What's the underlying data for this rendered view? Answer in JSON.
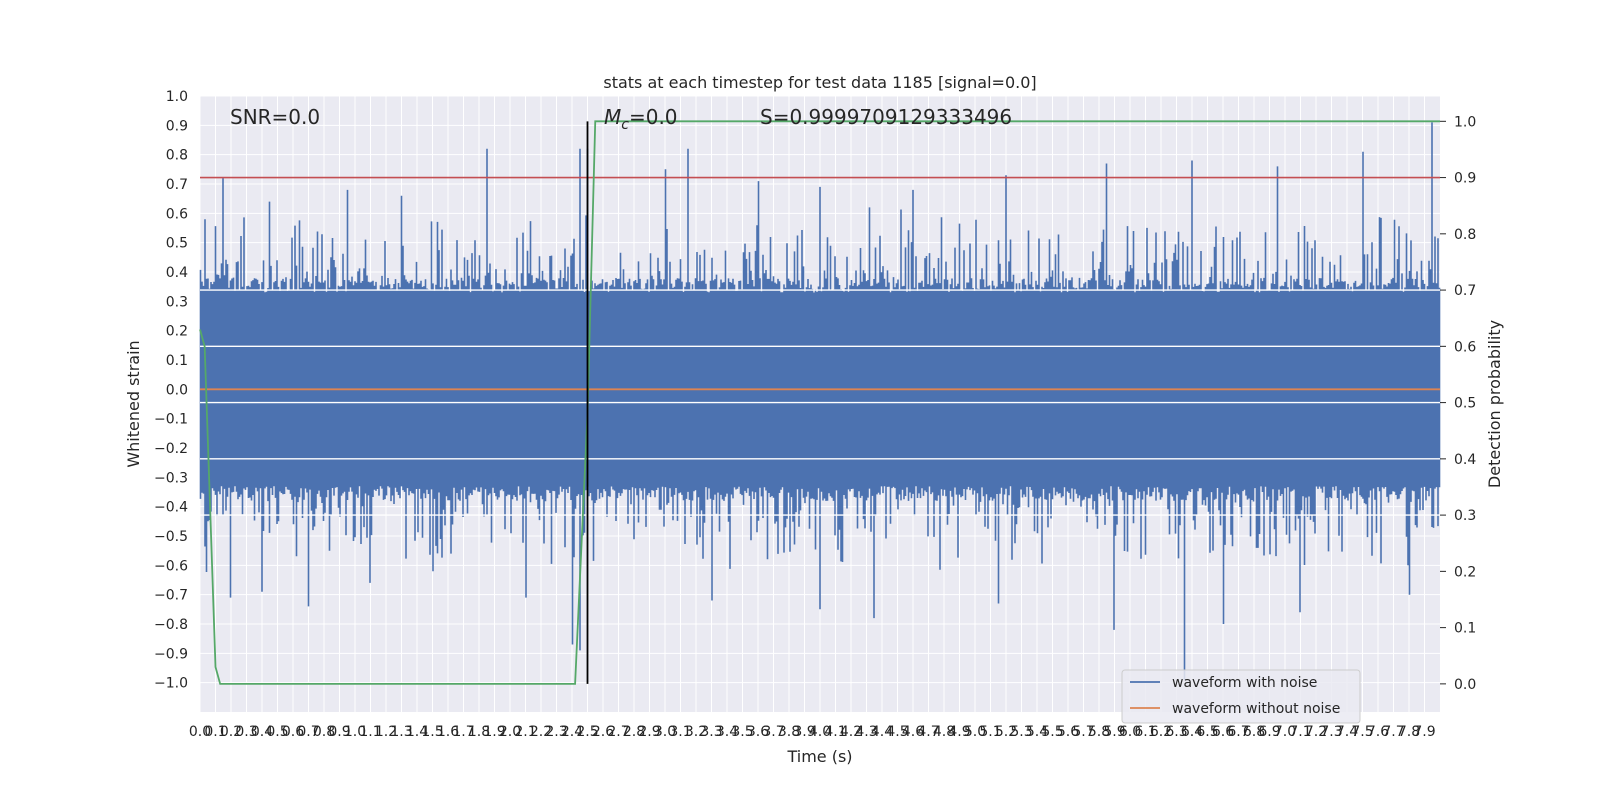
{
  "chart_data": {
    "type": "line",
    "title": "stats at each timestep for test data 1185 [signal=0.0]",
    "xlabel": "Time (s)",
    "ylabel": "Whitened strain",
    "ylabel_right": "Detection probability",
    "xlim": [
      0.0,
      8.0
    ],
    "ylim": [
      -1.1,
      1.0
    ],
    "ylim_right": [
      -0.05,
      1.045
    ],
    "x_ticks": [
      0.0,
      0.1,
      0.2,
      0.3,
      0.4,
      0.5,
      0.6,
      0.7,
      0.8,
      0.9,
      1.0,
      1.1,
      1.2,
      1.3,
      1.4,
      1.5,
      1.6,
      1.7,
      1.8,
      1.9,
      2.0,
      2.1,
      2.2,
      2.3,
      2.4,
      2.5,
      2.6,
      2.7,
      2.8,
      2.9,
      3.0,
      3.1,
      3.2,
      3.3,
      3.4,
      3.5,
      3.6,
      3.7,
      3.8,
      3.9,
      4.0,
      4.1,
      4.2,
      4.3,
      4.4,
      4.5,
      4.6,
      4.7,
      4.8,
      4.9,
      5.0,
      5.1,
      5.2,
      5.3,
      5.4,
      5.5,
      5.6,
      5.7,
      5.8,
      5.9,
      6.0,
      6.1,
      6.2,
      6.3,
      6.4,
      6.5,
      6.6,
      6.7,
      6.8,
      6.9,
      7.0,
      7.1,
      7.2,
      7.3,
      7.4,
      7.5,
      7.6,
      7.7,
      7.8,
      7.9
    ],
    "y_ticks": [
      -1.0,
      -0.9,
      -0.8,
      -0.7,
      -0.6,
      -0.5,
      -0.4,
      -0.3,
      -0.2,
      -0.1,
      0.0,
      0.1,
      0.2,
      0.3,
      0.4,
      0.5,
      0.6,
      0.7,
      0.8,
      0.9,
      1.0
    ],
    "y_ticks_right": [
      0.0,
      0.1,
      0.2,
      0.3,
      0.4,
      0.5,
      0.6,
      0.7,
      0.8,
      0.9,
      1.0
    ],
    "series": [
      {
        "name": "waveform with noise",
        "color": "#4c72b0",
        "axis": "left",
        "note_type": "noise-envelope",
        "x_start": 0.0,
        "x_end": 8.0,
        "core_amplitude": 0.33,
        "peaks_x": [
          0.03,
          0.15,
          0.45,
          0.95,
          1.3,
          1.85,
          2.45,
          2.5,
          3.0,
          3.15,
          3.6,
          4.0,
          4.6,
          5.2,
          5.85,
          6.4,
          6.95,
          7.5,
          7.95
        ],
        "peaks_y": [
          0.58,
          0.72,
          0.64,
          0.68,
          0.66,
          0.82,
          0.82,
          0.82,
          0.75,
          0.82,
          0.71,
          0.69,
          0.68,
          0.73,
          0.77,
          0.78,
          0.76,
          0.81,
          0.91
        ],
        "troughs_x": [
          0.05,
          0.2,
          0.4,
          0.7,
          1.1,
          1.5,
          2.1,
          2.4,
          2.45,
          3.3,
          3.85,
          4.0,
          4.35,
          5.15,
          5.9,
          6.35,
          6.6,
          7.1,
          7.8
        ],
        "troughs_y": [
          -0.45,
          -0.71,
          -0.69,
          -0.74,
          -0.66,
          -0.62,
          -0.71,
          -0.87,
          -0.89,
          -0.72,
          -0.83,
          -0.75,
          -0.78,
          -0.73,
          -0.82,
          -0.99,
          -0.8,
          -0.76,
          -0.7
        ]
      },
      {
        "name": "waveform without noise",
        "color": "#dd8452",
        "axis": "left",
        "x": [
          0.0,
          8.0
        ],
        "y": [
          0.0,
          0.0
        ]
      },
      {
        "color": "#55a868",
        "axis": "right",
        "x": [
          0.0,
          0.03,
          0.1,
          0.13,
          0.2,
          2.0,
          2.42,
          2.5,
          2.55,
          8.0
        ],
        "y": [
          0.63,
          0.6,
          0.03,
          0.0,
          0.0,
          0.0,
          0.0,
          0.48,
          1.0,
          1.0
        ]
      }
    ],
    "threshold_line": {
      "color": "#c44e52",
      "axis": "right",
      "value": 0.9
    },
    "marker_line": {
      "color": "#000000",
      "x": 2.5,
      "y_range_right": [
        0.0,
        1.0
      ]
    },
    "annotations": {
      "snr": "SNR=0.0",
      "mc_symbol": "M",
      "mc_sub": "c",
      "mc_value": "=0.0",
      "s": "S=0.9999709129333496"
    },
    "legend_position": "lower right",
    "grid": true
  }
}
